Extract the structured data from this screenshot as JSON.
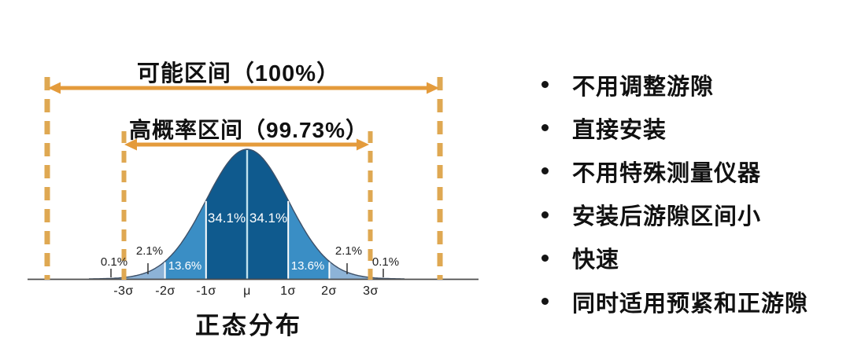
{
  "chart_data": {
    "type": "area",
    "subtype": "normal-distribution",
    "title": "正态分布",
    "x_ticks": [
      "-3σ",
      "-2σ",
      "-1σ",
      "μ",
      "1σ",
      "2σ",
      "3σ"
    ],
    "intervals": [
      {
        "label": "可能区间（100%）",
        "percent": 100,
        "range": "entire axis"
      },
      {
        "label": "高概率区间（99.73%）",
        "percent": 99.73,
        "range": "-3σ to +3σ"
      }
    ],
    "segments": [
      {
        "sigma_from": -4,
        "sigma_to": -3,
        "value": 0.1,
        "label": "0.1%",
        "color": "#9fbcda"
      },
      {
        "sigma_from": -3,
        "sigma_to": -2,
        "value": 2.1,
        "label": "2.1%",
        "color": "#8db3d7"
      },
      {
        "sigma_from": -2,
        "sigma_to": -1,
        "value": 13.6,
        "label": "13.6%",
        "color": "#3a8ec5"
      },
      {
        "sigma_from": -1,
        "sigma_to": 0,
        "value": 34.1,
        "label": "34.1%",
        "color": "#0f5a8e"
      },
      {
        "sigma_from": 0,
        "sigma_to": 1,
        "value": 34.1,
        "label": "34.1%",
        "color": "#0f5a8e"
      },
      {
        "sigma_from": 1,
        "sigma_to": 2,
        "value": 13.6,
        "label": "13.6%",
        "color": "#3a8ec5"
      },
      {
        "sigma_from": 2,
        "sigma_to": 3,
        "value": 2.1,
        "label": "2.1%",
        "color": "#8db3d7"
      },
      {
        "sigma_from": 3,
        "sigma_to": 4,
        "value": 0.1,
        "label": "0.1%",
        "color": "#9fbcda"
      }
    ],
    "colors": {
      "dark_blue": "#0f5a8e",
      "mid_blue": "#3a8ec5",
      "light_blue": "#8db3d7",
      "pale_blue": "#9fbcda",
      "arrow_orange": "#e49b3b",
      "dash_orange": "#dfa852",
      "axis": "#4d4d4d",
      "divider_white": "#ffffff",
      "mu_divider": "#bfe2ee"
    },
    "legend": "none",
    "grid": "off"
  },
  "benefits": {
    "items": [
      "不用调整游隙",
      "直接安装",
      "不用特殊测量仪器",
      "安装后游隙区间小",
      "快速",
      "同时适用预紧和正游隙"
    ]
  }
}
